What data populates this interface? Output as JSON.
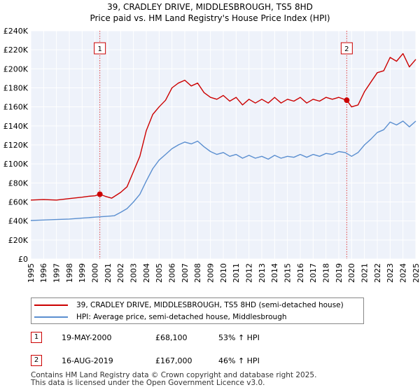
{
  "title_line1": "39, CRADLEY DRIVE, MIDDLESBROUGH, TS5 8HD",
  "title_line2": "Price paid vs. HM Land Registry's House Price Index (HPI)",
  "chart_data": {
    "type": "line",
    "title": "Price paid vs. HM Land Registry's House Price Index (HPI)",
    "xlabel": "",
    "ylabel": "",
    "xlim": [
      1995,
      2025
    ],
    "ylim": [
      0,
      240000
    ],
    "y_ticks": [
      0,
      20000,
      40000,
      60000,
      80000,
      100000,
      120000,
      140000,
      160000,
      180000,
      200000,
      220000,
      240000
    ],
    "y_tick_labels": [
      "£0",
      "£20K",
      "£40K",
      "£60K",
      "£80K",
      "£100K",
      "£120K",
      "£140K",
      "£160K",
      "£180K",
      "£200K",
      "£220K",
      "£240K"
    ],
    "x_ticks": [
      1995,
      1996,
      1997,
      1998,
      1999,
      2000,
      2001,
      2002,
      2003,
      2004,
      2005,
      2006,
      2007,
      2008,
      2009,
      2010,
      2011,
      2012,
      2013,
      2014,
      2015,
      2016,
      2017,
      2018,
      2019,
      2020,
      2021,
      2022,
      2023,
      2024,
      2025
    ],
    "x_tick_labels": [
      "1995",
      "1996",
      "1997",
      "1998",
      "1999",
      "2000",
      "2001",
      "2002",
      "2003",
      "2004",
      "2005",
      "2006",
      "2007",
      "2008",
      "2009",
      "2010",
      "2011",
      "2012",
      "2013",
      "2014",
      "2015",
      "2016",
      "2017",
      "2018",
      "2019",
      "2020",
      "2021",
      "2022",
      "2023",
      "2024",
      "2025"
    ],
    "grid": true,
    "series": [
      {
        "name": "39, CRADLEY DRIVE, MIDDLESBROUGH, TS5 8HD (semi-detached house)",
        "color": "#cc0000",
        "x": [
          1995,
          1996,
          1997,
          1998,
          1999,
          1999.5,
          2000,
          2000.38,
          2000.8,
          2001.3,
          2002,
          2002.5,
          2003,
          2003.5,
          2004,
          2004.5,
          2005,
          2005.5,
          2006,
          2006.5,
          2007,
          2007.5,
          2008,
          2008.5,
          2009,
          2009.5,
          2010,
          2010.5,
          2011,
          2011.5,
          2012,
          2012.5,
          2013,
          2013.5,
          2014,
          2014.5,
          2015,
          2015.5,
          2016,
          2016.5,
          2017,
          2017.5,
          2018,
          2018.5,
          2019,
          2019.62,
          2020,
          2020.5,
          2021,
          2021.5,
          2022,
          2022.5,
          2023,
          2023.5,
          2024,
          2024.5,
          2025
        ],
        "y": [
          62000,
          62500,
          62000,
          63500,
          65000,
          66000,
          66500,
          68100,
          66000,
          64000,
          70000,
          76000,
          92000,
          108000,
          135000,
          152000,
          160000,
          167000,
          180000,
          185000,
          188000,
          182000,
          185000,
          175000,
          170000,
          168000,
          172000,
          166000,
          170000,
          162000,
          168000,
          164000,
          168000,
          164000,
          170000,
          164000,
          168000,
          166000,
          170000,
          164000,
          168000,
          166000,
          170000,
          168000,
          170000,
          167000,
          160000,
          162000,
          176000,
          186000,
          196000,
          198000,
          212000,
          208000,
          216000,
          202000,
          210000
        ]
      },
      {
        "name": "HPI: Average price, semi-detached house, Middlesbrough",
        "color": "#5b8fd0",
        "x": [
          1995,
          1996,
          1997,
          1998,
          1999,
          1999.5,
          2000,
          2000.5,
          2001,
          2001.5,
          2002,
          2002.5,
          2003,
          2003.5,
          2004,
          2004.5,
          2005,
          2005.5,
          2006,
          2006.5,
          2007,
          2007.5,
          2008,
          2008.5,
          2009,
          2009.5,
          2010,
          2010.5,
          2011,
          2011.5,
          2012,
          2012.5,
          2013,
          2013.5,
          2014,
          2014.5,
          2015,
          2015.5,
          2016,
          2016.5,
          2017,
          2017.5,
          2018,
          2018.5,
          2019,
          2019.5,
          2020,
          2020.5,
          2021,
          2021.5,
          2022,
          2022.5,
          2023,
          2023.5,
          2024,
          2024.5,
          2025
        ],
        "y": [
          40500,
          41000,
          41500,
          42000,
          43000,
          43500,
          44000,
          44500,
          45000,
          45500,
          49000,
          53000,
          60000,
          68000,
          82000,
          95000,
          104000,
          110000,
          116000,
          120000,
          123000,
          121000,
          124000,
          118000,
          113000,
          110000,
          112000,
          108000,
          110000,
          106000,
          109000,
          106000,
          108000,
          105000,
          109000,
          106000,
          108000,
          107000,
          110000,
          107000,
          110000,
          108000,
          111000,
          110000,
          113000,
          112000,
          108000,
          112000,
          120000,
          126000,
          133000,
          136000,
          144000,
          141000,
          145000,
          139000,
          145000
        ]
      }
    ],
    "sale_markers": [
      {
        "label": "1",
        "x": 2000.38,
        "y": 68100
      },
      {
        "label": "2",
        "x": 2019.62,
        "y": 167000
      }
    ]
  },
  "legend": [
    {
      "label": "39, CRADLEY DRIVE, MIDDLESBROUGH, TS5 8HD (semi-detached house)",
      "color": "#cc0000"
    },
    {
      "label": "HPI: Average price, semi-detached house, Middlesbrough",
      "color": "#5b8fd0"
    }
  ],
  "sales": [
    {
      "marker": "1",
      "date": "19-MAY-2000",
      "price": "£68,100",
      "hpi": "53% ↑ HPI"
    },
    {
      "marker": "2",
      "date": "16-AUG-2019",
      "price": "£167,000",
      "hpi": "46% ↑ HPI"
    }
  ],
  "footer_line1": "Contains HM Land Registry data © Crown copyright and database right 2025.",
  "footer_line2": "This data is licensed under the Open Government Licence v3.0."
}
